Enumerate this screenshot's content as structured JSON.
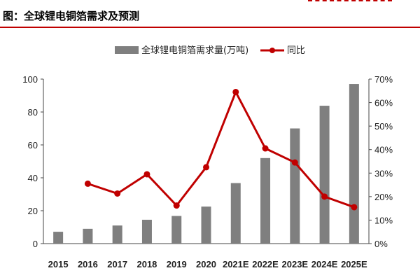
{
  "title": "图：全球锂电铜箔需求及预测",
  "chart_data": {
    "type": "bar+line",
    "categories": [
      "2015",
      "2016",
      "2017",
      "2018",
      "2019",
      "2020",
      "2021E",
      "2022E",
      "2023E",
      "2024E",
      "2025E"
    ],
    "series": [
      {
        "name": "全球锂电铜箔需求量(万吨)",
        "type": "bar",
        "axis": "left",
        "values": [
          7.2,
          9.0,
          11.0,
          14.5,
          16.8,
          22.5,
          36.8,
          52.0,
          70.0,
          83.8,
          97.0
        ]
      },
      {
        "name": "同比",
        "type": "line",
        "axis": "right",
        "values": [
          null,
          25.5,
          21.3,
          29.5,
          16.2,
          32.5,
          64.5,
          40.5,
          34.5,
          20.0,
          15.5
        ]
      }
    ],
    "y_left": {
      "ylim": [
        0,
        100
      ],
      "ticks": [
        "0",
        "20",
        "40",
        "60",
        "80",
        "100"
      ]
    },
    "y_right": {
      "ylim": [
        0,
        70
      ],
      "ticks": [
        "0%",
        "10%",
        "20%",
        "30%",
        "40%",
        "50%",
        "60%",
        "70%"
      ]
    },
    "legend_position": "top",
    "colors": {
      "bar": "#7f7f7f",
      "line": "#c00000",
      "title_rule": "#c00000"
    }
  }
}
